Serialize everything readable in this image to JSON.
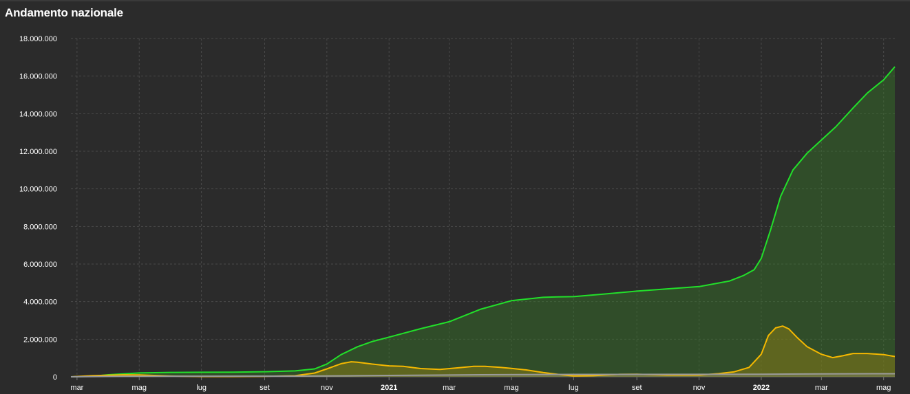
{
  "header": {
    "title": "Andamento nazionale"
  },
  "colors": {
    "background": "#2b2b2b",
    "grid": "#4a4a4a",
    "total_cases": "#22e02a",
    "active_cases": "#f5b800",
    "deaths": "#9a9a9a"
  },
  "chart_data": {
    "type": "area",
    "title": "Andamento nazionale",
    "xlabel": "",
    "ylabel": "",
    "ylim": [
      0,
      18000000
    ],
    "xlim": [
      "2020-02-24",
      "2022-05-12"
    ],
    "grid": true,
    "y_ticks": [
      {
        "value": 0,
        "label": "0"
      },
      {
        "value": 2000000,
        "label": "2.000.000"
      },
      {
        "value": 4000000,
        "label": "4.000.000"
      },
      {
        "value": 6000000,
        "label": "6.000.000"
      },
      {
        "value": 8000000,
        "label": "8.000.000"
      },
      {
        "value": 10000000,
        "label": "10.000.000"
      },
      {
        "value": 12000000,
        "label": "12.000.000"
      },
      {
        "value": 14000000,
        "label": "14.000.000"
      },
      {
        "value": 16000000,
        "label": "16.000.000"
      },
      {
        "value": 18000000,
        "label": "18.000.000"
      }
    ],
    "x_ticks": [
      {
        "date": "2020-03-01",
        "label": "mar",
        "bold": false
      },
      {
        "date": "2020-05-01",
        "label": "mag",
        "bold": false
      },
      {
        "date": "2020-07-01",
        "label": "lug",
        "bold": false
      },
      {
        "date": "2020-09-01",
        "label": "set",
        "bold": false
      },
      {
        "date": "2020-11-01",
        "label": "nov",
        "bold": false
      },
      {
        "date": "2021-01-01",
        "label": "2021",
        "bold": true
      },
      {
        "date": "2021-03-01",
        "label": "mar",
        "bold": false
      },
      {
        "date": "2021-05-01",
        "label": "mag",
        "bold": false
      },
      {
        "date": "2021-07-01",
        "label": "lug",
        "bold": false
      },
      {
        "date": "2021-09-01",
        "label": "set",
        "bold": false
      },
      {
        "date": "2021-11-01",
        "label": "nov",
        "bold": false
      },
      {
        "date": "2022-01-01",
        "label": "2022",
        "bold": true
      },
      {
        "date": "2022-03-01",
        "label": "mar",
        "bold": false
      },
      {
        "date": "2022-05-01",
        "label": "mag",
        "bold": false
      }
    ],
    "series": [
      {
        "key": "total_cases",
        "points": [
          [
            "2020-02-24",
            0
          ],
          [
            "2020-03-15",
            25000
          ],
          [
            "2020-04-01",
            110000
          ],
          [
            "2020-05-01",
            205000
          ],
          [
            "2020-06-01",
            233000
          ],
          [
            "2020-07-01",
            240000
          ],
          [
            "2020-08-01",
            248000
          ],
          [
            "2020-09-01",
            270000
          ],
          [
            "2020-10-01",
            315000
          ],
          [
            "2020-10-20",
            420000
          ],
          [
            "2020-11-01",
            680000
          ],
          [
            "2020-11-15",
            1180000
          ],
          [
            "2020-12-01",
            1600000
          ],
          [
            "2020-12-15",
            1870000
          ],
          [
            "2021-01-01",
            2110000
          ],
          [
            "2021-02-01",
            2560000
          ],
          [
            "2021-03-01",
            2930000
          ],
          [
            "2021-04-01",
            3600000
          ],
          [
            "2021-05-01",
            4050000
          ],
          [
            "2021-06-01",
            4230000
          ],
          [
            "2021-06-15",
            4250000
          ],
          [
            "2021-07-01",
            4265000
          ],
          [
            "2021-08-01",
            4410000
          ],
          [
            "2021-09-01",
            4560000
          ],
          [
            "2021-10-01",
            4680000
          ],
          [
            "2021-11-01",
            4800000
          ],
          [
            "2021-12-01",
            5100000
          ],
          [
            "2021-12-15",
            5400000
          ],
          [
            "2021-12-25",
            5700000
          ],
          [
            "2022-01-01",
            6300000
          ],
          [
            "2022-01-10",
            7800000
          ],
          [
            "2022-01-20",
            9600000
          ],
          [
            "2022-02-01",
            11000000
          ],
          [
            "2022-02-15",
            11900000
          ],
          [
            "2022-03-01",
            12600000
          ],
          [
            "2022-03-15",
            13300000
          ],
          [
            "2022-04-01",
            14300000
          ],
          [
            "2022-04-15",
            15100000
          ],
          [
            "2022-05-01",
            15800000
          ],
          [
            "2022-05-12",
            16500000
          ]
        ]
      },
      {
        "key": "active_cases",
        "points": [
          [
            "2020-02-24",
            0
          ],
          [
            "2020-03-15",
            60000
          ],
          [
            "2020-04-15",
            105000
          ],
          [
            "2020-05-01",
            100000
          ],
          [
            "2020-06-01",
            40000
          ],
          [
            "2020-07-01",
            15000
          ],
          [
            "2020-08-01",
            13000
          ],
          [
            "2020-09-01",
            25000
          ],
          [
            "2020-10-01",
            60000
          ],
          [
            "2020-10-20",
            200000
          ],
          [
            "2020-11-01",
            420000
          ],
          [
            "2020-11-15",
            700000
          ],
          [
            "2020-11-25",
            800000
          ],
          [
            "2020-12-01",
            780000
          ],
          [
            "2020-12-15",
            680000
          ],
          [
            "2021-01-01",
            580000
          ],
          [
            "2021-01-15",
            560000
          ],
          [
            "2021-02-01",
            440000
          ],
          [
            "2021-02-20",
            390000
          ],
          [
            "2021-03-10",
            480000
          ],
          [
            "2021-03-25",
            560000
          ],
          [
            "2021-04-05",
            560000
          ],
          [
            "2021-04-20",
            500000
          ],
          [
            "2021-05-01",
            450000
          ],
          [
            "2021-05-15",
            370000
          ],
          [
            "2021-06-01",
            230000
          ],
          [
            "2021-06-20",
            100000
          ],
          [
            "2021-07-01",
            45000
          ],
          [
            "2021-07-20",
            60000
          ],
          [
            "2021-08-15",
            130000
          ],
          [
            "2021-09-01",
            135000
          ],
          [
            "2021-10-01",
            90000
          ],
          [
            "2021-11-01",
            90000
          ],
          [
            "2021-11-20",
            170000
          ],
          [
            "2021-12-05",
            260000
          ],
          [
            "2021-12-20",
            500000
          ],
          [
            "2022-01-01",
            1200000
          ],
          [
            "2022-01-08",
            2200000
          ],
          [
            "2022-01-15",
            2600000
          ],
          [
            "2022-01-22",
            2700000
          ],
          [
            "2022-01-28",
            2550000
          ],
          [
            "2022-02-05",
            2100000
          ],
          [
            "2022-02-15",
            1600000
          ],
          [
            "2022-03-01",
            1200000
          ],
          [
            "2022-03-12",
            1020000
          ],
          [
            "2022-03-22",
            1120000
          ],
          [
            "2022-04-01",
            1240000
          ],
          [
            "2022-04-15",
            1240000
          ],
          [
            "2022-05-01",
            1180000
          ],
          [
            "2022-05-12",
            1080000
          ]
        ]
      },
      {
        "key": "deaths",
        "points": [
          [
            "2020-02-24",
            0
          ],
          [
            "2020-04-15",
            25000
          ],
          [
            "2020-06-01",
            33000
          ],
          [
            "2020-10-01",
            36000
          ],
          [
            "2020-12-01",
            57000
          ],
          [
            "2021-01-01",
            75000
          ],
          [
            "2021-04-01",
            110000
          ],
          [
            "2021-07-01",
            127000
          ],
          [
            "2021-11-01",
            133000
          ],
          [
            "2022-01-01",
            138000
          ],
          [
            "2022-03-01",
            156000
          ],
          [
            "2022-05-12",
            165000
          ]
        ]
      }
    ]
  }
}
